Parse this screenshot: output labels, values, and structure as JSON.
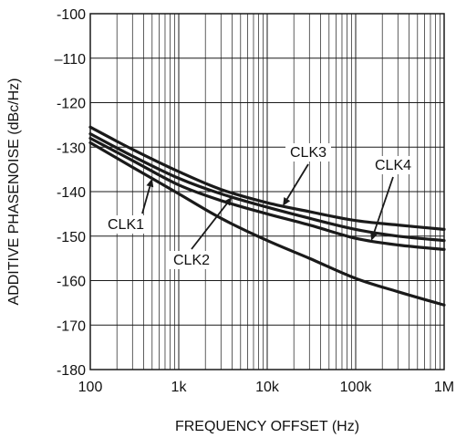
{
  "chart_data": {
    "type": "line",
    "title": "",
    "xlabel": "FREQUENCY OFFSET (Hz)",
    "ylabel": "ADDITIVE PHASENOISE (dBc/Hz)",
    "xscale": "log",
    "xlim": [
      100,
      1000000
    ],
    "ylim": [
      -180,
      -100
    ],
    "grid": true,
    "x_ticks": [
      100,
      1000,
      10000,
      100000,
      1000000
    ],
    "x_tick_labels": [
      "100",
      "1k",
      "10k",
      "100k",
      "1M"
    ],
    "y_ticks": [
      -100,
      -110,
      -120,
      -130,
      -140,
      -150,
      -160,
      -170,
      -180
    ],
    "y_tick_labels": [
      "-100",
      "–110",
      "-120",
      "-130",
      "-140",
      "-150",
      "-160",
      "-170",
      "-180"
    ],
    "legend": "none",
    "x": [
      100,
      300,
      1000,
      3000,
      10000,
      30000,
      100000,
      300000,
      1000000
    ],
    "series": [
      {
        "name": "CLK1",
        "values": [
          -129,
          -134.5,
          -140.5,
          -146,
          -151,
          -155,
          -159.5,
          -162.5,
          -165.5
        ]
      },
      {
        "name": "CLK2",
        "values": [
          -127,
          -132,
          -137,
          -140.5,
          -143.5,
          -146,
          -148.5,
          -150,
          -151
        ]
      },
      {
        "name": "CLK3",
        "values": [
          -125.5,
          -130.5,
          -135.5,
          -139.5,
          -142.5,
          -144.5,
          -146.5,
          -147.5,
          -148.5
        ]
      },
      {
        "name": "CLK4",
        "values": [
          -128,
          -133,
          -138.5,
          -142,
          -145,
          -147.5,
          -150.5,
          -152,
          -153
        ]
      }
    ],
    "annotations": [
      {
        "label": "CLK1",
        "series": "CLK1",
        "x": 500
      },
      {
        "label": "CLK2",
        "series": "CLK2",
        "x": 4000
      },
      {
        "label": "CLK3",
        "series": "CLK3",
        "x": 15000
      },
      {
        "label": "CLK4",
        "series": "CLK4",
        "x": 150000
      }
    ]
  }
}
